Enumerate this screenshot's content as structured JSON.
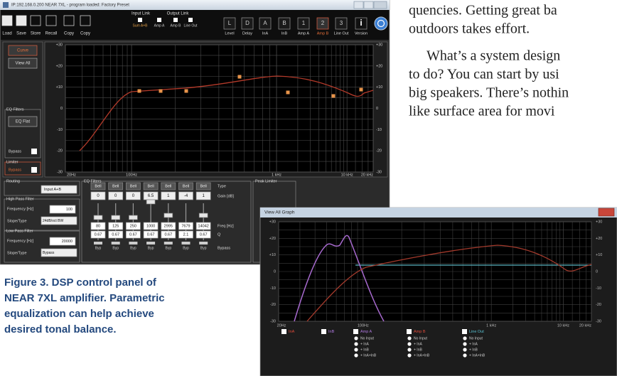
{
  "article": {
    "lines": [
      "quencies. Getting great ba",
      "outdoors takes effort.",
      "What’s a system design",
      "to do? You can start by usi",
      "big speakers. There’s nothin",
      "like surface area for movi"
    ]
  },
  "caption": {
    "lines": [
      "Figure 3.  DSP control panel of",
      "NEAR 7XL amplifier. Parametric",
      "equalization can help achieve",
      "desired tonal balance."
    ]
  },
  "dsp_window": {
    "title": "IP:192.168.0.200  NEAR 7XL  -  program loaded: Factory Preset",
    "toolbar": [
      "Load",
      "Save",
      "Store",
      "Recall",
      "Copy",
      "Copy"
    ],
    "input_link": "Input Link",
    "output_link": "Output Link",
    "link_options": [
      "Sum A+B",
      "Amp A",
      "Amp B",
      "Line Out"
    ],
    "tab_letters": [
      "L",
      "D",
      "A",
      "B",
      "1",
      "2",
      "3",
      "i"
    ],
    "tabs": [
      "Level",
      "Delay",
      "InA",
      "InB",
      "Amp A",
      "Amp B",
      "Line Out",
      "Version"
    ],
    "sidebar": {
      "curve": "Curve",
      "view_all": "View All",
      "eq_filters": "EQ Filters",
      "eq_flat": "EQ Flat",
      "eq_bypass": "Bypass",
      "limiter": "Limiter",
      "limiter_bypass": "Bypass"
    },
    "graph": {
      "yticks": [
        "+30",
        "+20",
        "+10",
        "0",
        "-10",
        "-20",
        "-30"
      ],
      "xticks": [
        "20Hz",
        "100Hz",
        "1 kHz",
        "10 kHz",
        "20 kHz"
      ]
    },
    "routing": {
      "label": "Routing",
      "value": "Input A+B"
    },
    "high_pass": {
      "label": "High Pass Filter",
      "frequency_label": "Frequency [Hz]",
      "frequency": "100",
      "slope_label": "Slope/Type",
      "slope": "24dB/oct BW"
    },
    "low_pass": {
      "label": "Low Pass Filter",
      "frequency_label": "Frequency [Hz]",
      "frequency": "20000",
      "slope_label": "Slope/Type",
      "slope": "Bypass"
    },
    "eq": {
      "label": "EQ Filters",
      "row_labels": {
        "type": "Type",
        "gain": "Gain [dB]",
        "freq": "Freq [Hz]",
        "q": "Q",
        "bypass": "Bypass"
      },
      "bands": [
        {
          "type": "Bell",
          "gain": "0",
          "freq": "80",
          "q": "0.67",
          "bypass": "Byp"
        },
        {
          "type": "Bell",
          "gain": "0",
          "freq": "125",
          "q": "0.67",
          "bypass": "Byp"
        },
        {
          "type": "Bell",
          "gain": "0",
          "freq": "250",
          "q": "0.67",
          "bypass": "Byp"
        },
        {
          "type": "Bell",
          "gain": "6.5",
          "freq": "1000",
          "q": "0.67",
          "bypass": "Byp"
        },
        {
          "type": "Bell",
          "gain": "1",
          "freq": "2995",
          "q": "0.67",
          "bypass": "Byp"
        },
        {
          "type": "Bell",
          "gain": "-4",
          "freq": "7679",
          "q": "2.1",
          "bypass": "Byp"
        },
        {
          "type": "Bell",
          "gain": "1",
          "freq": "14042",
          "q": "0.67",
          "bypass": "Byp"
        }
      ]
    },
    "peak_limiter": "Peak Limiter"
  },
  "graph_window": {
    "title": "View All Graph",
    "yticks": [
      "+30",
      "+20",
      "+10",
      "0",
      "-10",
      "-20",
      "-30"
    ],
    "xticks": [
      "20Hz",
      "100Hz",
      "1 kHz",
      "10 kHz",
      "20 kHz"
    ],
    "legend": [
      {
        "name": "InA"
      },
      {
        "name": "InB"
      },
      {
        "name": "Amp A",
        "options": [
          "No Input",
          "+ InA",
          "+ InB",
          "+ InA+InB"
        ]
      },
      {
        "name": "Amp B",
        "options": [
          "No Input",
          "+ InA",
          "+ InB",
          "+ InA+InB"
        ]
      },
      {
        "name": "Line Out",
        "options": [
          "No Input",
          "+ InA",
          "+ InB",
          "+ InA+InB"
        ]
      }
    ]
  }
}
